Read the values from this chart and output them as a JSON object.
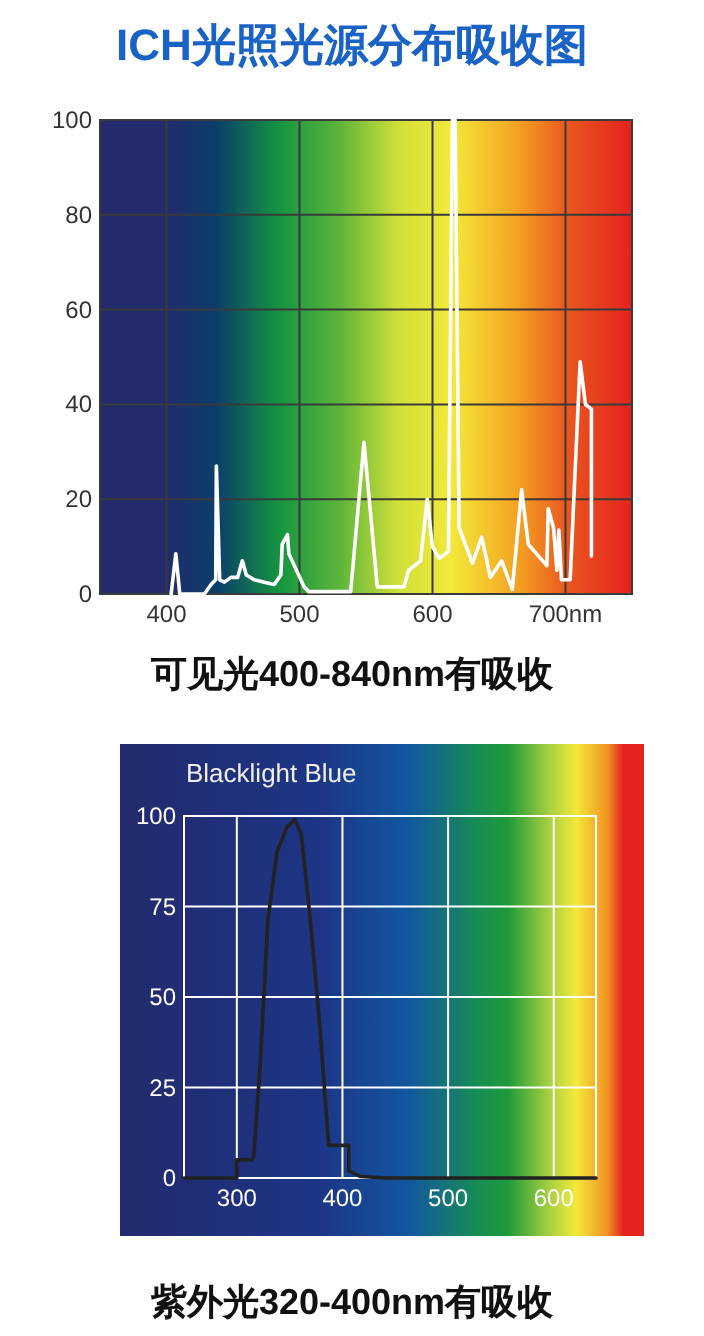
{
  "chart_data": [
    {
      "type": "line",
      "title": "ICH光照光源分布吸收图",
      "annotations": [
        "可见光400-840nm有吸收"
      ],
      "xlim": [
        350,
        750
      ],
      "ylim": [
        0,
        100
      ],
      "xticks": [
        400,
        500,
        600,
        {
          "value": 700,
          "label": "700nm"
        }
      ],
      "yticks": [
        0,
        20,
        40,
        60,
        80,
        100
      ],
      "grid": true,
      "series": [
        {
          "color": "#ffffff",
          "x": [
            403.5,
            407,
            410,
            428.5,
            433.5,
            437,
            437.5,
            440,
            443.5,
            448.5,
            453.5,
            457,
            460,
            466,
            473.5,
            481,
            486,
            487,
            491,
            492,
            503.5,
            507,
            538.5,
            548.5,
            558.5,
            578.5,
            582,
            591,
            596,
            600,
            605,
            612,
            615,
            617,
            620,
            630,
            637,
            643.5,
            652,
            660,
            667,
            672,
            686,
            687,
            691,
            693.5,
            695,
            697,
            703.5,
            711,
            715,
            719.5,
            719.5
          ],
          "values": [
            0,
            8.5,
            0,
            0,
            2,
            3,
            27,
            3,
            2.5,
            3.5,
            3.5,
            7,
            4,
            3,
            2.5,
            2,
            4,
            10.5,
            12.5,
            8.5,
            1.5,
            0.5,
            0.5,
            32,
            1.5,
            1.5,
            5,
            7,
            20,
            10,
            7.5,
            9,
            100,
            100,
            14,
            6.5,
            12,
            3.5,
            7,
            1,
            22,
            10.5,
            6,
            18,
            14,
            5,
            13.5,
            3,
            3,
            49,
            40,
            39,
            8
          ]
        }
      ]
    },
    {
      "type": "line",
      "title": "Blacklight Blue",
      "annotations": [
        "紫外光320-400nm有吸收"
      ],
      "xlim": [
        250,
        640
      ],
      "ylim": [
        0,
        100
      ],
      "xticks": [
        300,
        400,
        500,
        600
      ],
      "yticks": [
        0,
        25,
        50,
        75,
        100
      ],
      "grid": true,
      "series": [
        {
          "color": "#222222",
          "x": [
            250,
            300,
            300,
            314,
            316,
            322,
            329.5,
            338,
            347.5,
            355,
            361,
            369.5,
            378,
            387,
            406,
            406,
            417,
            442,
            640
          ],
          "values": [
            0,
            0,
            5,
            5,
            6,
            31,
            71.5,
            90,
            97,
            99,
            95,
            71.5,
            44,
            9,
            9,
            2,
            0.4,
            0,
            0
          ]
        }
      ]
    }
  ]
}
